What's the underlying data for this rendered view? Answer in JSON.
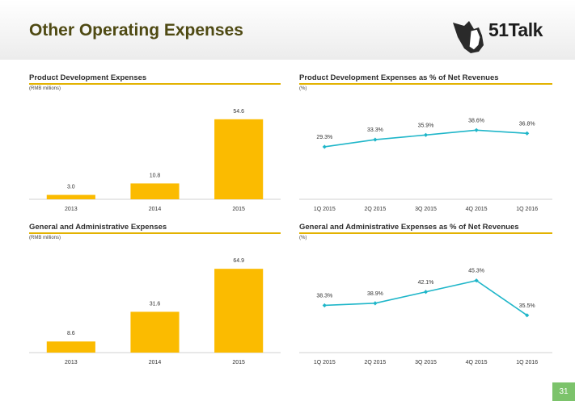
{
  "header": {
    "title": "Other Operating Expenses",
    "logo_text": "51Talk"
  },
  "colors": {
    "bar": "#fbbb00",
    "line": "#1fb6c9",
    "rule": "#e3b200",
    "title": "#4f4a13",
    "page_badge": "#7cc36b"
  },
  "chart_data": [
    {
      "type": "bar",
      "title": "Product Development Expenses",
      "unit": "(RMB millions)",
      "categories": [
        "2013",
        "2014",
        "2015"
      ],
      "values": [
        3.0,
        10.8,
        54.6
      ],
      "labels": [
        "3.0",
        "10.8",
        "54.6"
      ],
      "ylim": [
        0,
        60
      ]
    },
    {
      "type": "line",
      "title": "Product Development Expenses as % of Net Revenues",
      "unit": "(%)",
      "categories": [
        "1Q 2015",
        "2Q 2015",
        "3Q 2015",
        "4Q 2015",
        "1Q 2016"
      ],
      "values": [
        29.3,
        33.3,
        35.9,
        38.6,
        36.8
      ],
      "labels": [
        "29.3%",
        "33.3%",
        "35.9%",
        "38.6%",
        "36.8%"
      ],
      "ylim": [
        0,
        50
      ]
    },
    {
      "type": "bar",
      "title": "General and Administrative Expenses",
      "unit": "(RMB millions)",
      "categories": [
        "2013",
        "2014",
        "2015"
      ],
      "values": [
        8.6,
        31.6,
        64.9
      ],
      "labels": [
        "8.6",
        "31.6",
        "64.9"
      ],
      "ylim": [
        0,
        70
      ]
    },
    {
      "type": "line",
      "title": "General and Administrative Expenses as % of Net Revenues",
      "unit": "(%)",
      "categories": [
        "1Q 2015",
        "2Q 2015",
        "3Q 2015",
        "4Q 2015",
        "1Q 2016"
      ],
      "values": [
        38.3,
        38.9,
        42.1,
        45.3,
        35.5
      ],
      "labels": [
        "38.3%",
        "38.9%",
        "42.1%",
        "45.3%",
        "35.5%"
      ],
      "ylim": [
        25,
        50
      ]
    }
  ],
  "footer": {
    "page_number": "31"
  }
}
